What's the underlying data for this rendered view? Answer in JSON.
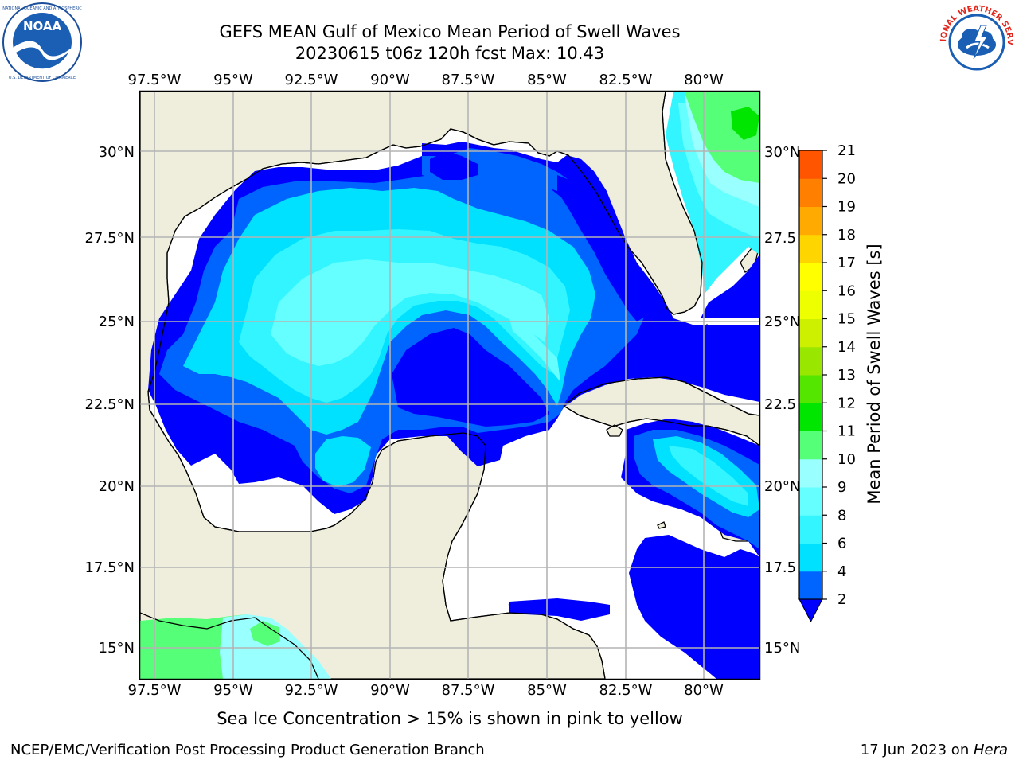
{
  "header": {
    "title_line1": "GEFS MEAN Gulf of Mexico Mean Period of Swell Waves",
    "title_line2": "20230615 t06z 120h fcst   Max: 10.43"
  },
  "logos": {
    "left": {
      "text": "NOAA",
      "ring_text": "NATIONAL OCEANIC AND ATMOSPHERIC ADMINISTRATION · U.S. DEPARTMENT OF COMMERCE"
    },
    "right": {
      "ring_text": "NATIONAL WEATHER SERVICE"
    }
  },
  "map": {
    "lon_labels": [
      "97.5°W",
      "95°W",
      "92.5°W",
      "90°W",
      "87.5°W",
      "85°W",
      "82.5°W",
      "80°W"
    ],
    "lat_labels_left": [
      "30°N",
      "27.5°N",
      "25°N",
      "22.5°N",
      "20°N",
      "17.5°N",
      "15°N"
    ],
    "lat_labels_right": [
      "30°N",
      "27.5",
      "25°N",
      "22.5",
      "20°N",
      "17.5",
      "15°N"
    ],
    "colors": {
      "land": "#efeedc",
      "coast": "#000000",
      "grid": "#b4b4b4",
      "no_data": "#ffffff"
    }
  },
  "colorbar": {
    "label": "Mean Period of Swell Waves [s]",
    "ticks": [
      "2",
      "4",
      "6",
      "8",
      "9",
      "10",
      "11",
      "12",
      "13",
      "14",
      "15",
      "16",
      "17",
      "18",
      "19",
      "20",
      "21"
    ],
    "colors": [
      "#0064ff",
      "#00e1ff",
      "#33f5ff",
      "#66ffff",
      "#99ffff",
      "#55ff77",
      "#00e600",
      "#55e600",
      "#99e600",
      "#ccf000",
      "#eeff00",
      "#ffff00",
      "#ffd500",
      "#ffaa00",
      "#ff8000",
      "#ff5500",
      "#ff2a00",
      "#ff0000"
    ],
    "extend_color": "#0000ff"
  },
  "footer": {
    "subtitle": "Sea Ice Concentration > 15% is shown in pink to yellow",
    "branch": "NCEP/EMC/Verification Post Processing Product Generation Branch",
    "date": "17 Jun 2023 on ",
    "machine": "Hera"
  }
}
